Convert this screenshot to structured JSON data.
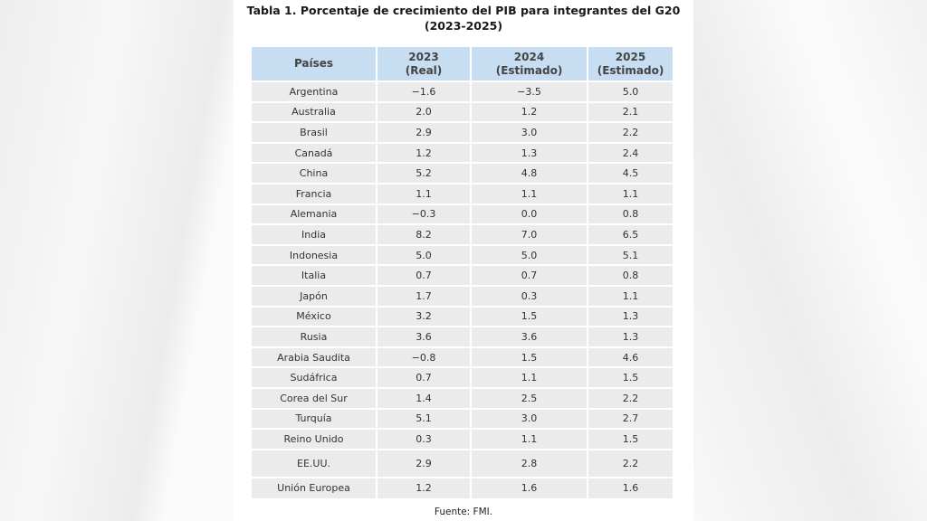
{
  "title_line1": "Tabla 1. Porcentaje de crecimiento del PIB para integrantes del G20",
  "title_line2": "(2023-2025)",
  "headers": [
    {
      "line1": "Países",
      "line2": ""
    },
    {
      "line1": "2023",
      "line2": "(Real)"
    },
    {
      "line1": "2024",
      "line2": "(Estimado)"
    },
    {
      "line1": "2025",
      "line2": "(Estimado)"
    }
  ],
  "rows": [
    [
      "Argentina",
      "−1.6",
      "−3.5",
      "5.0"
    ],
    [
      "Australia",
      "2.0",
      "1.2",
      "2.1"
    ],
    [
      "Brasil",
      "2.9",
      "3.0",
      "2.2"
    ],
    [
      "Canadá",
      "1.2",
      "1.3",
      "2.4"
    ],
    [
      "China",
      "5.2",
      "4.8",
      "4.5"
    ],
    [
      "Francia",
      "1.1",
      "1.1",
      "1.1"
    ],
    [
      "Alemania",
      "−0.3",
      "0.0",
      "0.8"
    ],
    [
      "India",
      "8.2",
      "7.0",
      "6.5"
    ],
    [
      "Indonesia",
      "5.0",
      "5.0",
      "5.1"
    ],
    [
      "Italia",
      "0.7",
      "0.7",
      "0.8"
    ],
    [
      "Japón",
      "1.7",
      "0.3",
      "1.1"
    ],
    [
      "México",
      "3.2",
      "1.5",
      "1.3"
    ],
    [
      "Rusia",
      "3.6",
      "3.6",
      "1.3"
    ],
    [
      "Arabia Saudita",
      "−0.8",
      "1.5",
      "4.6"
    ],
    [
      "Sudáfrica",
      "0.7",
      "1.1",
      "1.5"
    ],
    [
      "Corea del Sur",
      "1.4",
      "2.5",
      "2.2"
    ],
    [
      "Turquía",
      "5.1",
      "3.0",
      "2.7"
    ],
    [
      "Reino Unido",
      "0.3",
      "1.1",
      "1.5"
    ],
    [
      "EE.UU.",
      "2.9",
      "2.8",
      "2.2"
    ],
    [
      "Unión Europea",
      "1.2",
      "1.6",
      "1.6"
    ]
  ],
  "source": "Fuente: FMI.",
  "colors": {
    "header_bg": "#c6ddf2",
    "row_bg": "#ebebeb"
  }
}
